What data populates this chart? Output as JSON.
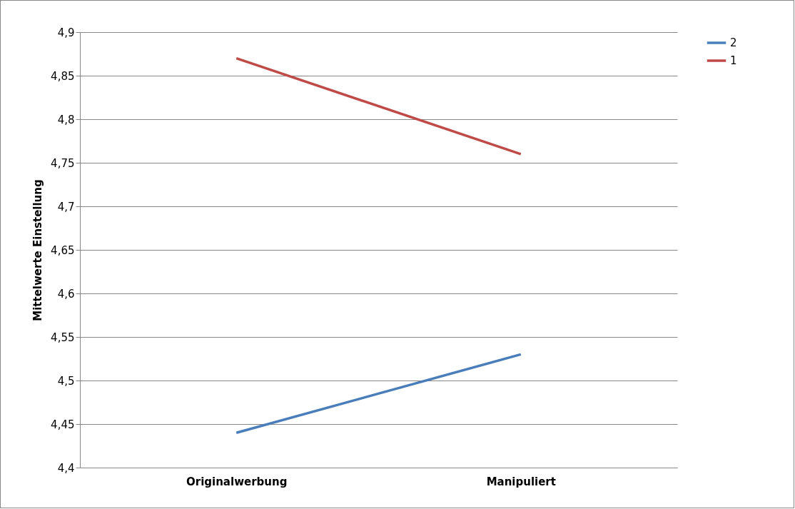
{
  "chart_data": {
    "type": "line",
    "ylabel": "Mittelwerte Einstellung",
    "categories": [
      "Originalwerbung",
      "Manipuliert"
    ],
    "series": [
      {
        "name": "2",
        "color": "#4a7ebb",
        "values": [
          4.44,
          4.53
        ]
      },
      {
        "name": "1",
        "color": "#be4b48",
        "values": [
          4.87,
          4.76
        ]
      }
    ],
    "ylim": [
      4.4,
      4.9
    ],
    "yticks": [
      {
        "value": 4.4,
        "label": "4,4"
      },
      {
        "value": 4.45,
        "label": "4,45"
      },
      {
        "value": 4.5,
        "label": "4,5"
      },
      {
        "value": 4.55,
        "label": "4,55"
      },
      {
        "value": 4.6,
        "label": "4,6"
      },
      {
        "value": 4.65,
        "label": "4,65"
      },
      {
        "value": 4.7,
        "label": "4,7"
      },
      {
        "value": 4.75,
        "label": "4,75"
      },
      {
        "value": 4.8,
        "label": "4,8"
      },
      {
        "value": 4.85,
        "label": "4,85"
      },
      {
        "value": 4.9,
        "label": "4,9"
      }
    ],
    "grid": "y",
    "legend": "right",
    "marker": "none",
    "line_style": "solid"
  }
}
